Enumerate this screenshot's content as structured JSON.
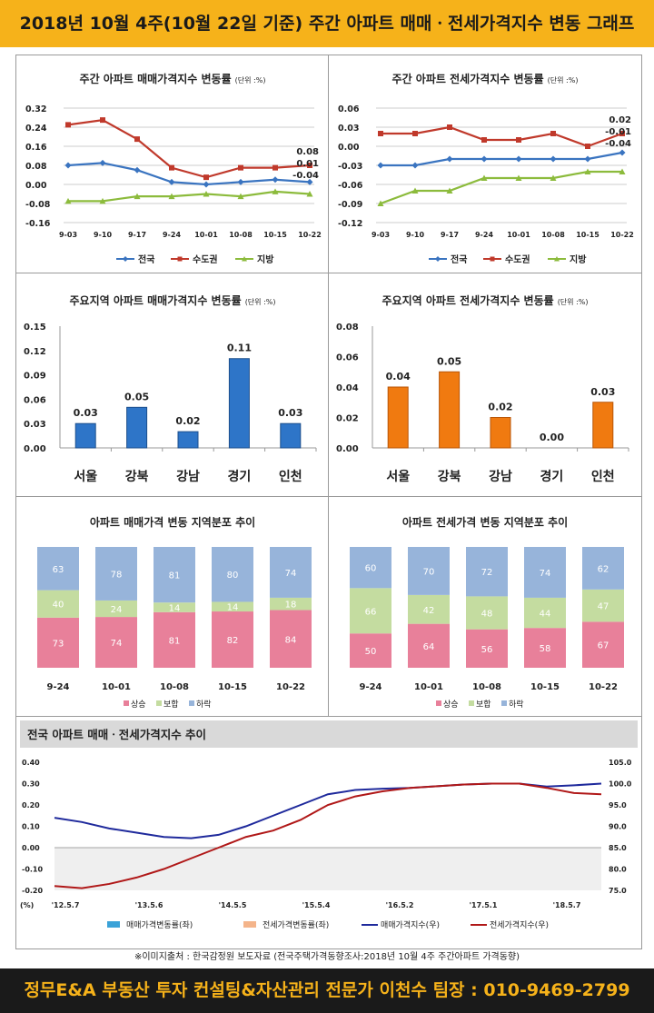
{
  "header": {
    "title": "2018년 10월 4주(10월 22일 기준) 주간 아파트 매매ㆍ전세가격지수 변동 그래프"
  },
  "footer": {
    "source": "※이미지출처 : 한국감정원 보도자료 (전국주택가격동향조사:2018년 10월 4주 주간아파트 가격동향)",
    "banner": "정무E&A 부동산 투자 컨설팅&자산관리 전문가 이천수 팀장 : 010-9469-2799"
  },
  "colors": {
    "nation": "#3a74c0",
    "capital": "#c0392b",
    "local": "#8cbb3c",
    "blue_bar": "#2e75c8",
    "orange_bar": "#f07a10",
    "rise": "#e8809a",
    "flat": "#c4dca0",
    "fall": "#97b4da",
    "sale_idx": "#1f2a9c",
    "jeonse_idx": "#b01818"
  },
  "chart_data": [
    {
      "id": "sale_weekly",
      "type": "line",
      "title": "주간 아파트 매매가격지수 변동률",
      "unit": "(단위 :%)",
      "x": [
        "9-03",
        "9-10",
        "9-17",
        "9-24",
        "10-01",
        "10-08",
        "10-15",
        "10-22"
      ],
      "series": [
        {
          "name": "전국",
          "values": [
            0.08,
            0.09,
            0.06,
            0.01,
            0.0,
            0.01,
            0.02,
            0.01
          ]
        },
        {
          "name": "수도권",
          "values": [
            0.25,
            0.27,
            0.19,
            0.07,
            0.03,
            0.07,
            0.07,
            0.08
          ]
        },
        {
          "name": "지방",
          "values": [
            -0.07,
            -0.07,
            -0.05,
            -0.05,
            -0.04,
            -0.05,
            -0.03,
            -0.04
          ]
        }
      ],
      "end_labels": [
        "0.08",
        "0.01",
        "-0.04"
      ],
      "ylim": [
        -0.16,
        0.32
      ],
      "yticks": [
        "0.32",
        "0.24",
        "0.16",
        "0.08",
        "0.00",
        "-0.08",
        "-0.16"
      ],
      "grid": true,
      "legend": "bottom"
    },
    {
      "id": "jeonse_weekly",
      "type": "line",
      "title": "주간 아파트 전세가격지수 변동률",
      "unit": "(단위 :%)",
      "x": [
        "9-03",
        "9-10",
        "9-17",
        "9-24",
        "10-01",
        "10-08",
        "10-15",
        "10-22"
      ],
      "series": [
        {
          "name": "전국",
          "values": [
            -0.03,
            -0.03,
            -0.02,
            -0.02,
            -0.02,
            -0.02,
            -0.02,
            -0.01
          ]
        },
        {
          "name": "수도권",
          "values": [
            0.02,
            0.02,
            0.03,
            0.01,
            0.01,
            0.02,
            0.0,
            0.02
          ]
        },
        {
          "name": "지방",
          "values": [
            -0.09,
            -0.07,
            -0.07,
            -0.05,
            -0.05,
            -0.05,
            -0.04,
            -0.04
          ]
        }
      ],
      "end_labels": [
        "0.02",
        "-0.01",
        "-0.04"
      ],
      "ylim": [
        -0.12,
        0.06
      ],
      "yticks": [
        "0.06",
        "0.03",
        "0.00",
        "-0.03",
        "-0.06",
        "-0.09",
        "-0.12"
      ],
      "grid": true,
      "legend": "bottom"
    },
    {
      "id": "sale_region",
      "type": "bar",
      "title": "주요지역 아파트 매매가격지수 변동률",
      "unit": "(단위 :%)",
      "categories": [
        "서울",
        "강북",
        "강남",
        "경기",
        "인천"
      ],
      "values": [
        0.03,
        0.05,
        0.02,
        0.11,
        0.03
      ],
      "value_labels": [
        "0.03",
        "0.05",
        "0.02",
        "0.11",
        "0.03"
      ],
      "ylim": [
        0,
        0.15
      ],
      "yticks": [
        "0.15",
        "0.12",
        "0.09",
        "0.06",
        "0.03",
        "0.00"
      ]
    },
    {
      "id": "jeonse_region",
      "type": "bar",
      "title": "주요지역 아파트 전세가격지수 변동률",
      "unit": "(단위 :%)",
      "categories": [
        "서울",
        "강북",
        "강남",
        "경기",
        "인천"
      ],
      "values": [
        0.04,
        0.05,
        0.02,
        0.0,
        0.03
      ],
      "value_labels": [
        "0.04",
        "0.05",
        "0.02",
        "0.00",
        "0.03"
      ],
      "ylim": [
        0,
        0.08
      ],
      "yticks": [
        "0.08",
        "0.06",
        "0.04",
        "0.02",
        "0.00"
      ]
    },
    {
      "id": "sale_dist",
      "type": "bar",
      "stacked": true,
      "title": "아파트 매매가격 변동 지역분포 추이",
      "categories": [
        "9-24",
        "10-01",
        "10-08",
        "10-15",
        "10-22"
      ],
      "series": [
        {
          "name": "상승",
          "values": [
            73,
            74,
            81,
            82,
            84
          ]
        },
        {
          "name": "보합",
          "values": [
            40,
            24,
            14,
            14,
            18
          ]
        },
        {
          "name": "하락",
          "values": [
            63,
            78,
            81,
            80,
            74
          ]
        }
      ],
      "legend": "bottom"
    },
    {
      "id": "jeonse_dist",
      "type": "bar",
      "stacked": true,
      "title": "아파트 전세가격 변동 지역분포 추이",
      "categories": [
        "9-24",
        "10-01",
        "10-08",
        "10-15",
        "10-22"
      ],
      "series": [
        {
          "name": "상승",
          "values": [
            50,
            64,
            56,
            58,
            67
          ]
        },
        {
          "name": "보합",
          "values": [
            66,
            42,
            48,
            44,
            47
          ]
        },
        {
          "name": "하락",
          "values": [
            60,
            70,
            72,
            74,
            62
          ]
        }
      ],
      "legend": "bottom"
    },
    {
      "id": "trend",
      "type": "line",
      "title": "전국 아파트 매매ㆍ전세가격지수 추이",
      "x_ticks": [
        "'12.5.7",
        "'13.5.6",
        "'14.5.5",
        "'15.5.4",
        "'16.5.2",
        "'17.5.1",
        "'18.5.7"
      ],
      "x_unit": "(%)",
      "left_ticks": [
        "0.40",
        "0.30",
        "0.20",
        "0.10",
        "0.00",
        "-0.10",
        "-0.20"
      ],
      "right_ticks": [
        "105.0",
        "100.0",
        "95.0",
        "90.0",
        "85.0",
        "80.0",
        "75.0"
      ],
      "left_ylim": [
        -0.2,
        0.4
      ],
      "right_ylim": [
        75,
        105
      ],
      "sale_index": [
        [
          0,
          92
        ],
        [
          0.05,
          91
        ],
        [
          0.1,
          89.5
        ],
        [
          0.15,
          88.5
        ],
        [
          0.2,
          87.5
        ],
        [
          0.25,
          87.2
        ],
        [
          0.3,
          88
        ],
        [
          0.35,
          90
        ],
        [
          0.4,
          92.5
        ],
        [
          0.45,
          95
        ],
        [
          0.5,
          97.5
        ],
        [
          0.55,
          98.5
        ],
        [
          0.6,
          98.8
        ],
        [
          0.65,
          99
        ],
        [
          0.7,
          99.4
        ],
        [
          0.75,
          99.8
        ],
        [
          0.8,
          100
        ],
        [
          0.85,
          100
        ],
        [
          0.9,
          99.3
        ],
        [
          0.95,
          99.6
        ],
        [
          1.0,
          100
        ]
      ],
      "jeonse_index": [
        [
          0,
          76
        ],
        [
          0.05,
          75.5
        ],
        [
          0.1,
          76.5
        ],
        [
          0.15,
          78
        ],
        [
          0.2,
          80
        ],
        [
          0.25,
          82.5
        ],
        [
          0.3,
          85
        ],
        [
          0.35,
          87.5
        ],
        [
          0.4,
          89
        ],
        [
          0.45,
          91.5
        ],
        [
          0.5,
          95
        ],
        [
          0.55,
          97
        ],
        [
          0.6,
          98.2
        ],
        [
          0.65,
          99
        ],
        [
          0.7,
          99.4
        ],
        [
          0.75,
          99.8
        ],
        [
          0.8,
          100
        ],
        [
          0.85,
          100
        ],
        [
          0.9,
          99
        ],
        [
          0.95,
          97.8
        ],
        [
          1.0,
          97.5
        ]
      ],
      "legend_items": [
        "매매가격변동률(좌)",
        "전세가격변동률(좌)",
        "매매가격지수(우)",
        "전세가격지수(우)"
      ],
      "legend": "bottom"
    }
  ]
}
